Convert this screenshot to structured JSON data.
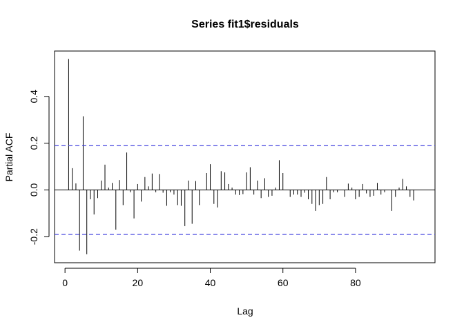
{
  "chart_data": {
    "type": "bar",
    "title": "Series  fit1$residuals",
    "xlabel": "Lag",
    "ylabel": "Partial ACF",
    "xlim": [
      1,
      98
    ],
    "ylim": [
      -0.3,
      0.6
    ],
    "x_ticks": [
      0,
      20,
      40,
      60,
      80
    ],
    "x_tick_labels": [
      "0",
      "20",
      "40",
      "60",
      "80"
    ],
    "y_ticks": [
      -0.2,
      0.0,
      0.2,
      0.4
    ],
    "y_tick_labels": [
      "-0.2",
      "0.0",
      "0.2",
      "0.4"
    ],
    "confidence_bound": 0.19,
    "colors": {
      "bars": "#000000",
      "bounds": "#3f3fdd",
      "zero_line": "#000000"
    },
    "series": [
      {
        "lags": [
          1,
          2,
          3,
          4,
          5,
          6,
          7,
          8,
          9,
          10,
          11,
          12,
          13,
          14,
          15,
          16,
          17,
          18,
          19,
          20,
          21,
          22,
          23,
          24,
          25,
          26,
          27,
          28,
          29,
          30,
          31,
          32,
          33,
          34,
          35,
          36,
          37,
          38,
          39,
          40,
          41,
          42,
          43,
          44,
          45,
          46,
          47,
          48,
          49,
          50,
          51,
          52,
          53,
          54,
          55,
          56,
          57,
          58,
          59,
          60,
          61,
          62,
          63,
          64,
          65,
          66,
          67,
          68,
          69,
          70,
          71,
          72,
          73,
          74,
          75,
          76,
          77,
          78,
          79,
          80,
          81,
          82,
          83,
          84,
          85,
          86,
          87,
          88,
          89,
          90,
          91,
          92,
          93,
          94,
          95,
          96,
          97,
          98
        ],
        "values": [
          0.56,
          0.093,
          0.028,
          -0.26,
          0.315,
          -0.275,
          -0.04,
          -0.105,
          -0.035,
          0.04,
          0.108,
          0.01,
          0.03,
          -0.17,
          0.042,
          -0.065,
          0.16,
          -0.01,
          -0.122,
          0.025,
          -0.05,
          0.055,
          0.015,
          0.07,
          -0.01,
          0.068,
          -0.012,
          -0.068,
          -0.01,
          -0.02,
          -0.065,
          -0.068,
          -0.155,
          0.04,
          -0.145,
          0.038,
          -0.065,
          0.0,
          0.072,
          0.11,
          -0.06,
          -0.075,
          0.08,
          0.075,
          0.025,
          0.01,
          -0.02,
          -0.022,
          -0.018,
          0.075,
          0.097,
          -0.02,
          0.04,
          -0.035,
          0.05,
          -0.03,
          -0.025,
          0.01,
          0.127,
          0.072,
          0.0,
          -0.03,
          -0.02,
          -0.02,
          -0.03,
          -0.012,
          -0.04,
          -0.06,
          -0.09,
          -0.065,
          -0.06,
          0.055,
          -0.04,
          -0.01,
          -0.01,
          0.0,
          -0.03,
          0.027,
          0.01,
          -0.04,
          -0.03,
          0.025,
          -0.015,
          -0.03,
          -0.025,
          0.03,
          -0.02,
          -0.01,
          0.0,
          -0.09,
          -0.03,
          0.01,
          0.047,
          0.015,
          -0.03,
          -0.045,
          0.0,
          0.0
        ]
      }
    ]
  }
}
